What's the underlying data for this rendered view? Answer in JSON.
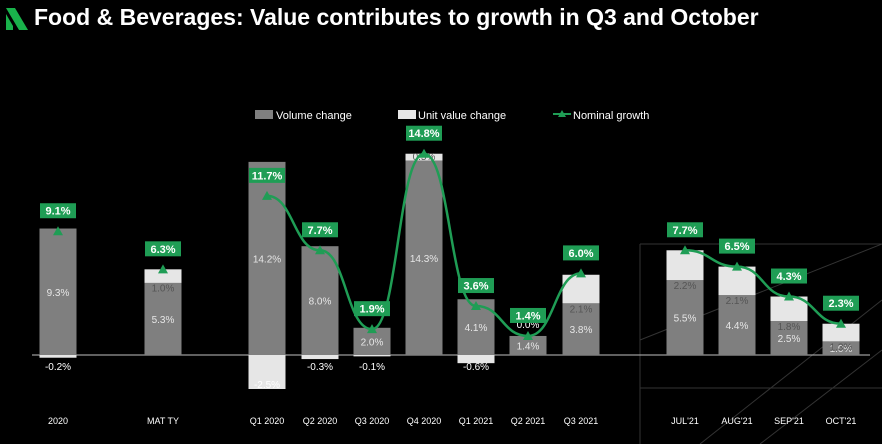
{
  "title": "Food & Beverages: Value contributes to growth in Q3 and October",
  "colors": {
    "volume": "#7f7f7f",
    "unit_value": "#e6e6e6",
    "nominal": "#1f9d55",
    "background": "#000000",
    "logo": "#19b24b"
  },
  "legend": {
    "volume": "Volume change",
    "unit_value": "Unit value change",
    "nominal": "Nominal growth"
  },
  "chart_data": {
    "type": "bar",
    "stacked": true,
    "title": "Food & Beverages: Value contributes to growth in Q3 and October",
    "xlabel": "",
    "ylabel": "",
    "legend_position": "top",
    "grid": false,
    "categories": [
      "2020",
      "MAT TY",
      "Q1 2020",
      "Q2 2020",
      "Q3 2020",
      "Q4 2020",
      "Q1 2021",
      "Q2 2021",
      "Q3 2021",
      "JUL'21",
      "AUG'21",
      "SEP'21",
      "OCT'21"
    ],
    "series": [
      {
        "name": "Volume change",
        "type": "bar",
        "values": [
          9.3,
          5.3,
          14.2,
          8.0,
          2.0,
          14.3,
          4.1,
          1.4,
          3.8,
          5.5,
          4.4,
          2.5,
          1.0
        ],
        "labels": [
          "9.3%",
          "5.3%",
          "14.2%",
          "8.0%",
          "2.0%",
          "14.3%",
          "4.1%",
          "1.4%",
          "3.8%",
          "5.5%",
          "4.4%",
          "2.5%",
          "1.0%"
        ]
      },
      {
        "name": "Unit value change",
        "type": "bar",
        "values": [
          -0.2,
          1.0,
          -2.5,
          -0.3,
          -0.1,
          0.5,
          -0.6,
          0.0,
          2.1,
          2.2,
          2.1,
          1.8,
          1.3
        ],
        "labels": [
          "-0.2%",
          "1.0%",
          "-2.5%",
          "-0.3%",
          "-0.1%",
          "0.5%",
          "-0.6%",
          "0.0%",
          "2.1%",
          "2.2%",
          "2.1%",
          "1.8%",
          "1.3%"
        ]
      },
      {
        "name": "Nominal growth",
        "type": "line",
        "values": [
          9.1,
          6.3,
          11.7,
          7.7,
          1.9,
          14.8,
          3.6,
          1.4,
          6.0,
          7.7,
          6.5,
          4.3,
          2.3
        ],
        "labels": [
          "9.1%",
          "6.3%",
          "11.7%",
          "7.7%",
          "1.9%",
          "14.8%",
          "3.6%",
          "1.4%",
          "6.0%",
          "7.7%",
          "6.5%",
          "4.3%",
          "2.3%"
        ]
      }
    ],
    "line_segments": [
      [
        2,
        8
      ],
      [
        9,
        12
      ]
    ]
  }
}
